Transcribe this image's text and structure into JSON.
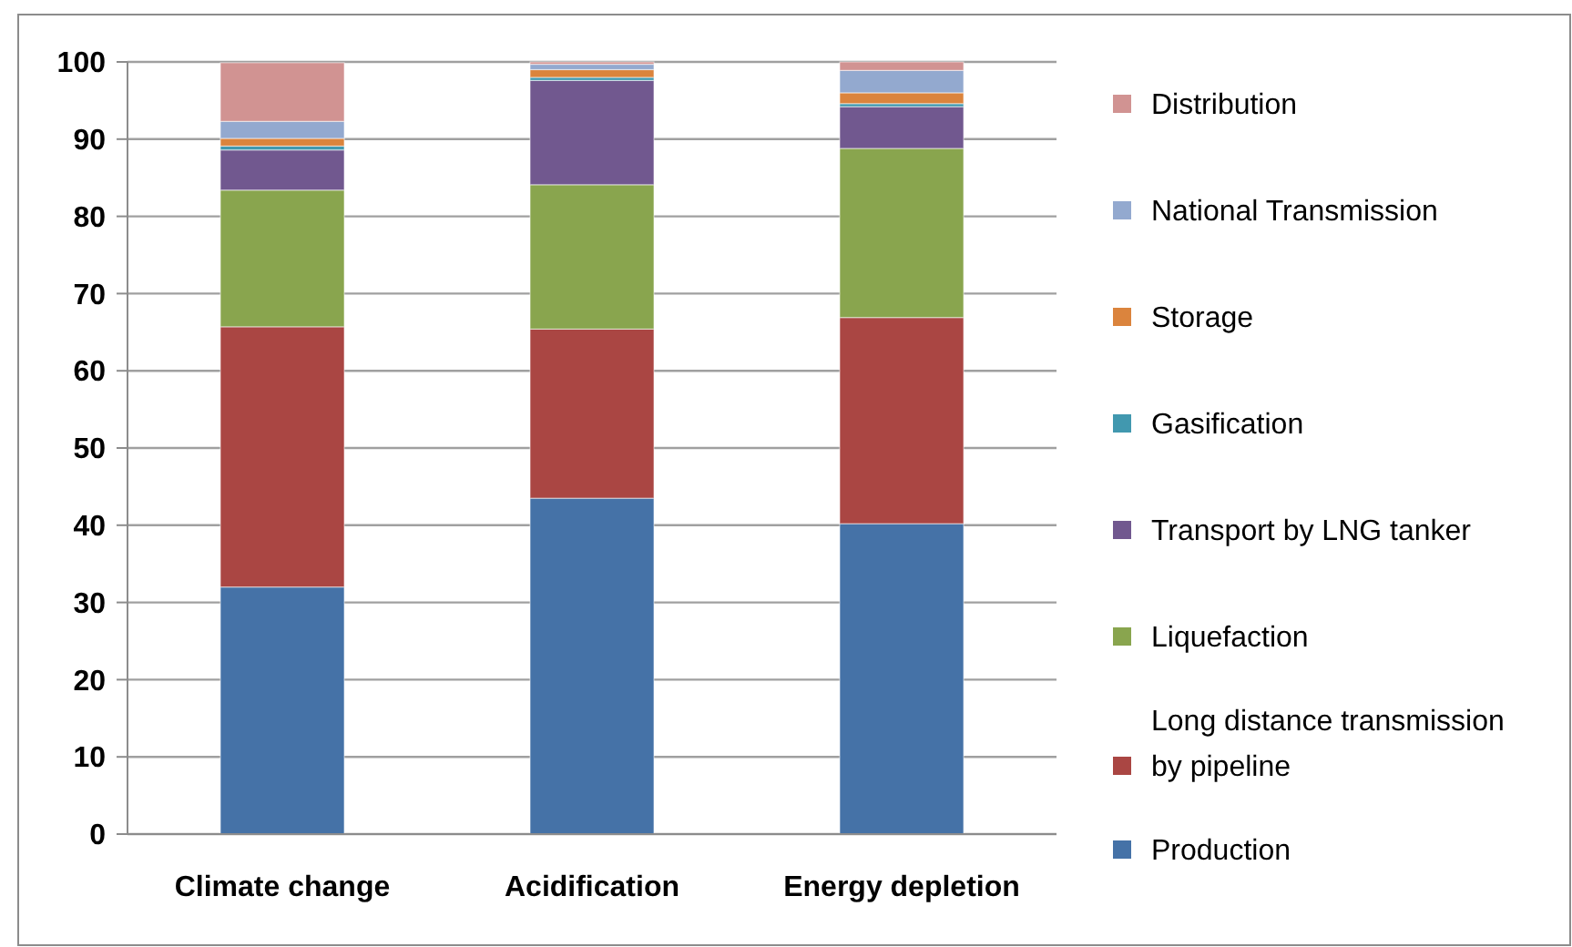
{
  "chart_data": {
    "type": "bar",
    "stacked": true,
    "categories": [
      "Climate change",
      "Acidification",
      "Energy depletion"
    ],
    "series": [
      {
        "name": "Production",
        "color": "#4572a7",
        "values": [
          32,
          43.5,
          40.2
        ]
      },
      {
        "name": "Long distance transmission by pipeline",
        "color": "#aa4643",
        "values": [
          33.7,
          21.9,
          26.7
        ]
      },
      {
        "name": "Liquefaction",
        "color": "#89a54e",
        "values": [
          17.7,
          18.7,
          21.9
        ]
      },
      {
        "name": "Transport by LNG tanker",
        "color": "#71588f",
        "values": [
          5.2,
          13.5,
          5.4
        ]
      },
      {
        "name": "Gasification",
        "color": "#4198af",
        "values": [
          0.5,
          0.4,
          0.4
        ]
      },
      {
        "name": "Storage",
        "color": "#db843d",
        "values": [
          1.0,
          1.0,
          1.4
        ]
      },
      {
        "name": "National Transmission",
        "color": "#93a9cf",
        "values": [
          2.2,
          0.7,
          2.9
        ]
      },
      {
        "name": "Distribution",
        "color": "#d19392",
        "values": [
          7.6,
          0.3,
          1.1
        ]
      }
    ],
    "ylim": [
      0,
      100
    ],
    "yticks": [
      0,
      10,
      20,
      30,
      40,
      50,
      60,
      70,
      80,
      90,
      100
    ],
    "grid": "y",
    "legend": "right"
  }
}
